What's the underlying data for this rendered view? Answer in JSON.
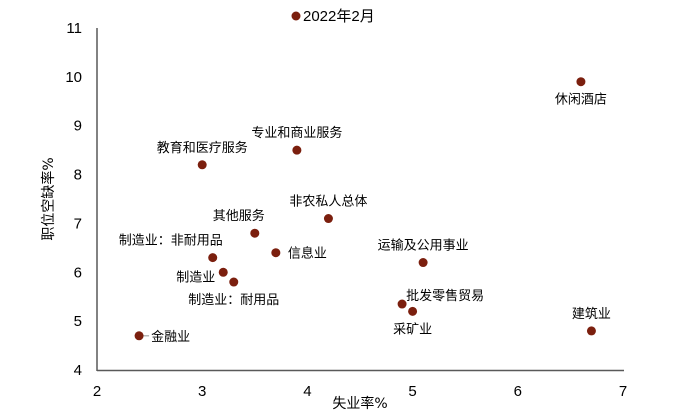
{
  "chart_data": {
    "type": "scatter",
    "title": "",
    "xlabel": "失业率%",
    "ylabel": "职位空缺率%",
    "xlim": [
      2,
      7
    ],
    "ylim": [
      4,
      11
    ],
    "xticks": [
      2,
      3,
      4,
      5,
      6,
      7
    ],
    "yticks": [
      4,
      5,
      6,
      7,
      8,
      9,
      10,
      11
    ],
    "grid": false,
    "legend": {
      "position": "top",
      "entries": [
        "2022年2月"
      ]
    },
    "marker_color": "#7B1F0E",
    "series": [
      {
        "name": "2022年2月",
        "points": [
          {
            "label": "休闲酒店",
            "x": 6.6,
            "y": 9.9,
            "label_pos": "below"
          },
          {
            "label": "专业和商业服务",
            "x": 3.9,
            "y": 8.5,
            "label_pos": "above"
          },
          {
            "label": "教育和医疗服务",
            "x": 3.0,
            "y": 8.2,
            "label_pos": "above"
          },
          {
            "label": "非农私人总体",
            "x": 4.2,
            "y": 7.1,
            "label_pos": "above"
          },
          {
            "label": "其他服务",
            "x": 3.5,
            "y": 6.8,
            "label_pos": "above-left"
          },
          {
            "label": "信息业",
            "x": 3.7,
            "y": 6.4,
            "label_pos": "right"
          },
          {
            "label": "制造业：非耐用品",
            "x": 3.1,
            "y": 6.3,
            "label_pos": "above-left"
          },
          {
            "label": "制造业",
            "x": 3.2,
            "y": 6.0,
            "label_pos": "left"
          },
          {
            "label": "制造业：耐用品",
            "x": 3.3,
            "y": 5.8,
            "label_pos": "below"
          },
          {
            "label": "运输及公用事业",
            "x": 5.1,
            "y": 6.2,
            "label_pos": "above"
          },
          {
            "label": "批发零售贸易",
            "x": 4.9,
            "y": 5.35,
            "label_pos": "above-right"
          },
          {
            "label": "采矿业",
            "x": 5.0,
            "y": 5.2,
            "label_pos": "below"
          },
          {
            "label": "建筑业",
            "x": 6.7,
            "y": 4.8,
            "label_pos": "above"
          },
          {
            "label": "金融业",
            "x": 2.4,
            "y": 4.7,
            "label_pos": "right"
          }
        ]
      }
    ]
  }
}
